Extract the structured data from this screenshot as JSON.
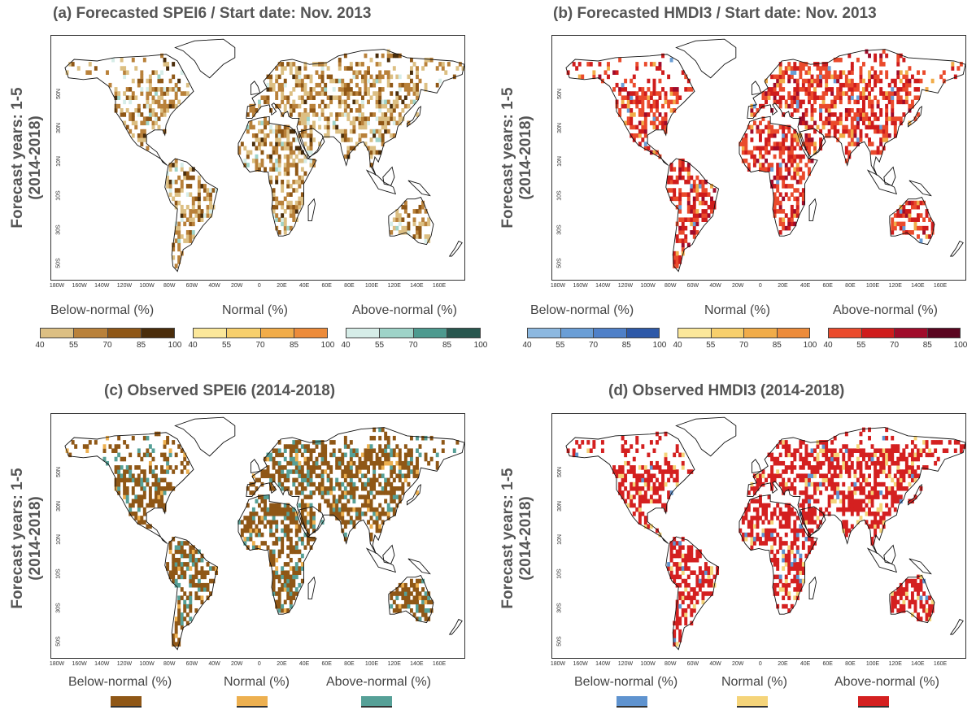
{
  "panels": {
    "a": {
      "title": "(a) Forecasted SPEI6 / Start date: Nov. 2013",
      "ylabel1": "Forecast years: 1-5",
      "ylabel2": "(2014-2018)"
    },
    "b": {
      "title": "(b) Forecasted HMDI3 / Start date: Nov. 2013",
      "ylabel1": "Forecast years: 1-5",
      "ylabel2": "(2014-2018)"
    },
    "c": {
      "title": "(c) Observed SPEI6 (2014-2018)",
      "ylabel1": "Forecast years: 1-5",
      "ylabel2": "(2014-2018)"
    },
    "d": {
      "title": "(d) Observed HMDI3 (2014-2018)",
      "ylabel1": "Forecast years: 1-5",
      "ylabel2": "(2014-2018)"
    }
  },
  "lon_ticks": [
    "180W",
    "160W",
    "140W",
    "120W",
    "100W",
    "80W",
    "60W",
    "40W",
    "20W",
    "0",
    "20E",
    "40E",
    "60E",
    "80E",
    "100E",
    "120E",
    "140E",
    "160E"
  ],
  "lat_ticks": [
    "50N",
    "30N",
    "10N",
    "10S",
    "30S",
    "50S"
  ],
  "legend": {
    "below": "Below-normal (%)",
    "normal": "Normal (%)",
    "above": "Above-normal (%)",
    "ticks": [
      "40",
      "55",
      "70",
      "85",
      "100"
    ]
  },
  "colors": {
    "spei_below": [
      "#dcbf83",
      "#b9813a",
      "#8f5716",
      "#4a2d0b"
    ],
    "spei_normal": [
      "#fbe79a",
      "#f7cf6c",
      "#f1ac49",
      "#ec8b3a"
    ],
    "spei_above": [
      "#d6ede8",
      "#9ed3c8",
      "#4d9a8f",
      "#28574f"
    ],
    "hmdi_below": [
      "#8cb8e0",
      "#6a9ed6",
      "#4f80c8",
      "#2e59a8"
    ],
    "hmdi_normal": [
      "#fbe79a",
      "#f7cf6c",
      "#f1ac49",
      "#ec8b3a"
    ],
    "hmdi_above": [
      "#ea4a2c",
      "#cf1c1c",
      "#a00b2a",
      "#5a0520"
    ],
    "obs_spei": [
      "#8f5716",
      "#edb050",
      "#56a097"
    ],
    "obs_hmdi": [
      "#5f93cf",
      "#f5d47a",
      "#d42020"
    ]
  }
}
